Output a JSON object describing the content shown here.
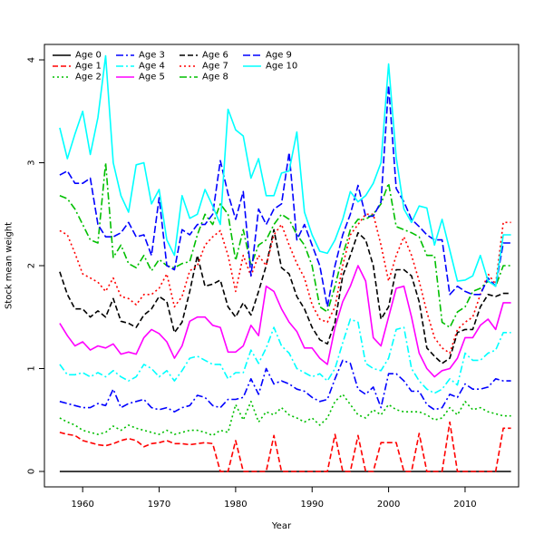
{
  "chart_data": {
    "type": "line",
    "title": "",
    "xlabel": "Year",
    "ylabel": "Stock mean weight",
    "xlim": [
      1955,
      2017
    ],
    "ylim": [
      -0.15,
      4.15
    ],
    "x_ticks": [
      1960,
      1970,
      1980,
      1990,
      2000,
      2010
    ],
    "y_ticks": [
      0,
      1,
      2,
      3,
      4
    ],
    "grid": false,
    "legend_position": "top-left",
    "x": [
      1957,
      1958,
      1959,
      1960,
      1961,
      1962,
      1963,
      1964,
      1965,
      1966,
      1967,
      1968,
      1969,
      1970,
      1971,
      1972,
      1973,
      1974,
      1975,
      1976,
      1977,
      1978,
      1979,
      1980,
      1981,
      1982,
      1983,
      1984,
      1985,
      1986,
      1987,
      1988,
      1989,
      1990,
      1991,
      1992,
      1993,
      1994,
      1995,
      1996,
      1997,
      1998,
      1999,
      2000,
      2001,
      2002,
      2003,
      2004,
      2005,
      2006,
      2007,
      2008,
      2009,
      2010,
      2011,
      2012,
      2013,
      2014,
      2015,
      2016
    ],
    "series": [
      {
        "name": "Age 0",
        "color": "#000000",
        "dash": "",
        "values": [
          0,
          0,
          0,
          0,
          0,
          0,
          0,
          0,
          0,
          0,
          0,
          0,
          0,
          0,
          0,
          0,
          0,
          0,
          0,
          0,
          0,
          0,
          0,
          0,
          0,
          0,
          0,
          0,
          0,
          0,
          0,
          0,
          0,
          0,
          0,
          0,
          0,
          0,
          0,
          0,
          0,
          0,
          0,
          0,
          0,
          0,
          0,
          0,
          0,
          0,
          0,
          0,
          0,
          0,
          0,
          0,
          0,
          0,
          0,
          0
        ]
      },
      {
        "name": "Age 1",
        "color": "#ff0000",
        "dash": "6,3",
        "values": [
          0.38,
          0.36,
          0.35,
          0.3,
          0.28,
          0.26,
          0.25,
          0.27,
          0.3,
          0.32,
          0.3,
          0.24,
          0.27,
          0.28,
          0.3,
          0.27,
          0.27,
          0.26,
          0.27,
          0.28,
          0.27,
          0.0,
          0.0,
          0.3,
          0.0,
          0.0,
          0.0,
          0.0,
          0.35,
          0.0,
          0.0,
          0.0,
          0.0,
          0.0,
          0.0,
          0.0,
          0.36,
          0.0,
          0.0,
          0.35,
          0.0,
          0.0,
          0.28,
          0.28,
          0.28,
          0.0,
          0.0,
          0.37,
          0.0,
          0.0,
          0.0,
          0.48,
          0.0,
          0.0,
          0.0,
          0.0,
          0.0,
          0.0,
          0.42,
          0.42
        ]
      },
      {
        "name": "Age 2",
        "color": "#00bf00",
        "dash": "2,3",
        "values": [
          0.52,
          0.48,
          0.45,
          0.4,
          0.38,
          0.36,
          0.38,
          0.44,
          0.4,
          0.45,
          0.42,
          0.4,
          0.38,
          0.36,
          0.4,
          0.36,
          0.38,
          0.4,
          0.4,
          0.38,
          0.35,
          0.4,
          0.38,
          0.65,
          0.5,
          0.68,
          0.48,
          0.58,
          0.55,
          0.62,
          0.55,
          0.52,
          0.48,
          0.52,
          0.45,
          0.52,
          0.68,
          0.75,
          0.65,
          0.55,
          0.52,
          0.6,
          0.55,
          0.65,
          0.6,
          0.58,
          0.58,
          0.58,
          0.55,
          0.5,
          0.52,
          0.62,
          0.55,
          0.68,
          0.6,
          0.62,
          0.58,
          0.56,
          0.54,
          0.54
        ]
      },
      {
        "name": "Age 3",
        "color": "#0000ff",
        "dash": "8,3,2,3",
        "values": [
          0.68,
          0.66,
          0.64,
          0.62,
          0.62,
          0.66,
          0.64,
          0.8,
          0.62,
          0.66,
          0.68,
          0.7,
          0.62,
          0.6,
          0.62,
          0.58,
          0.62,
          0.64,
          0.74,
          0.72,
          0.64,
          0.62,
          0.7,
          0.7,
          0.72,
          0.9,
          0.75,
          1.0,
          0.85,
          0.88,
          0.85,
          0.8,
          0.78,
          0.72,
          0.68,
          0.7,
          0.9,
          1.08,
          1.05,
          0.8,
          0.75,
          0.82,
          0.62,
          0.95,
          0.95,
          0.88,
          0.78,
          0.78,
          0.65,
          0.6,
          0.62,
          0.75,
          0.72,
          0.85,
          0.8,
          0.8,
          0.82,
          0.9,
          0.88,
          0.88
        ]
      },
      {
        "name": "Age 4",
        "color": "#00ffff",
        "dash": "8,3,2,3",
        "values": [
          1.04,
          0.94,
          0.94,
          0.96,
          0.92,
          0.96,
          0.92,
          0.98,
          0.92,
          0.88,
          0.92,
          1.04,
          1.0,
          0.92,
          0.98,
          0.88,
          0.98,
          1.1,
          1.12,
          1.08,
          1.04,
          1.04,
          0.9,
          0.96,
          0.96,
          1.18,
          1.05,
          1.2,
          1.4,
          1.22,
          1.15,
          1.0,
          0.96,
          0.92,
          0.95,
          0.88,
          1.0,
          1.25,
          1.48,
          1.45,
          1.05,
          1.0,
          0.98,
          1.1,
          1.38,
          1.4,
          1.0,
          0.88,
          0.8,
          0.76,
          0.8,
          0.9,
          0.84,
          1.15,
          1.08,
          1.08,
          1.15,
          1.18,
          1.35,
          1.35
        ]
      },
      {
        "name": "Age 5",
        "color": "#ff00ff",
        "dash": "",
        "values": [
          1.44,
          1.32,
          1.22,
          1.26,
          1.18,
          1.22,
          1.2,
          1.24,
          1.14,
          1.16,
          1.14,
          1.3,
          1.38,
          1.34,
          1.26,
          1.1,
          1.22,
          1.46,
          1.5,
          1.5,
          1.42,
          1.4,
          1.16,
          1.16,
          1.22,
          1.42,
          1.32,
          1.8,
          1.75,
          1.58,
          1.45,
          1.36,
          1.2,
          1.2,
          1.1,
          1.04,
          1.4,
          1.65,
          1.8,
          2.0,
          1.85,
          1.3,
          1.22,
          1.5,
          1.78,
          1.8,
          1.5,
          1.15,
          1.0,
          0.92,
          0.98,
          1.0,
          1.1,
          1.3,
          1.3,
          1.42,
          1.48,
          1.38,
          1.64,
          1.64
        ]
      },
      {
        "name": "Age 6",
        "color": "#000000",
        "dash": "6,3",
        "values": [
          1.94,
          1.72,
          1.58,
          1.58,
          1.5,
          1.56,
          1.5,
          1.68,
          1.46,
          1.44,
          1.4,
          1.52,
          1.58,
          1.7,
          1.65,
          1.35,
          1.45,
          1.75,
          2.1,
          1.8,
          1.82,
          1.86,
          1.6,
          1.5,
          1.64,
          1.52,
          1.75,
          2.0,
          2.35,
          1.98,
          1.92,
          1.7,
          1.58,
          1.4,
          1.28,
          1.24,
          1.45,
          1.9,
          2.1,
          2.32,
          2.25,
          2.0,
          1.48,
          1.6,
          1.96,
          1.96,
          1.9,
          1.65,
          1.2,
          1.12,
          1.05,
          1.1,
          1.35,
          1.38,
          1.38,
          1.6,
          1.72,
          1.7,
          1.73,
          1.73
        ]
      },
      {
        "name": "Age 7",
        "color": "#ff0000",
        "dash": "2,3",
        "values": [
          2.34,
          2.3,
          2.12,
          1.92,
          1.88,
          1.84,
          1.75,
          1.88,
          1.7,
          1.68,
          1.62,
          1.72,
          1.72,
          1.78,
          1.92,
          1.6,
          1.7,
          1.95,
          2.0,
          2.2,
          2.28,
          2.34,
          2.1,
          1.75,
          2.1,
          1.9,
          2.1,
          2.0,
          2.3,
          2.4,
          2.2,
          2.02,
          1.88,
          1.62,
          1.48,
          1.45,
          1.6,
          2.0,
          2.3,
          2.4,
          2.5,
          2.5,
          2.2,
          1.85,
          2.1,
          2.28,
          2.1,
          1.85,
          1.55,
          1.3,
          1.2,
          1.15,
          1.38,
          1.45,
          1.5,
          1.72,
          1.92,
          1.82,
          2.42,
          2.42
        ]
      },
      {
        "name": "Age 8",
        "color": "#00bf00",
        "dash": "8,3,2,3",
        "values": [
          2.68,
          2.65,
          2.55,
          2.4,
          2.25,
          2.22,
          3.0,
          2.08,
          2.2,
          2.02,
          1.98,
          2.1,
          1.95,
          2.06,
          2.0,
          1.98,
          2.02,
          2.04,
          2.3,
          2.5,
          2.4,
          2.6,
          2.5,
          2.05,
          2.35,
          2.0,
          2.2,
          2.25,
          2.4,
          2.5,
          2.45,
          2.3,
          2.2,
          2.0,
          1.6,
          1.55,
          1.8,
          2.1,
          2.35,
          2.45,
          2.45,
          2.5,
          2.6,
          2.8,
          2.38,
          2.35,
          2.32,
          2.28,
          2.1,
          2.1,
          1.45,
          1.4,
          1.55,
          1.6,
          1.75,
          1.78,
          1.85,
          1.8,
          2.0,
          2.0
        ]
      },
      {
        "name": "Age 9",
        "color": "#0000ff",
        "dash": "8,3",
        "values": [
          2.88,
          2.92,
          2.8,
          2.8,
          2.85,
          2.4,
          2.28,
          2.28,
          2.32,
          2.42,
          2.28,
          2.3,
          2.1,
          2.66,
          2.0,
          1.96,
          2.35,
          2.3,
          2.4,
          2.4,
          2.5,
          3.02,
          2.7,
          2.45,
          2.72,
          1.9,
          2.55,
          2.4,
          2.55,
          2.6,
          3.1,
          2.25,
          2.4,
          2.2,
          2.0,
          1.6,
          2.0,
          2.3,
          2.5,
          2.78,
          2.48,
          2.48,
          2.62,
          3.75,
          2.75,
          2.62,
          2.45,
          2.38,
          2.3,
          2.25,
          2.25,
          1.72,
          1.8,
          1.75,
          1.72,
          1.72,
          1.88,
          1.8,
          2.22,
          2.22
        ]
      },
      {
        "name": "Age 10",
        "color": "#00ffff",
        "dash": "",
        "values": [
          3.34,
          3.04,
          3.28,
          3.5,
          3.08,
          3.44,
          4.04,
          3.0,
          2.68,
          2.52,
          2.98,
          3.0,
          2.6,
          2.74,
          2.25,
          2.1,
          2.68,
          2.46,
          2.5,
          2.74,
          2.58,
          2.4,
          3.52,
          3.32,
          3.26,
          2.85,
          3.04,
          2.68,
          2.68,
          2.9,
          2.92,
          3.3,
          2.52,
          2.3,
          2.14,
          2.12,
          2.25,
          2.45,
          2.72,
          2.62,
          2.68,
          2.8,
          3.0,
          3.96,
          3.05,
          2.55,
          2.42,
          2.58,
          2.56,
          2.2,
          2.45,
          2.15,
          1.85,
          1.86,
          1.9,
          2.1,
          1.85,
          1.8,
          2.3,
          2.3
        ]
      }
    ]
  }
}
